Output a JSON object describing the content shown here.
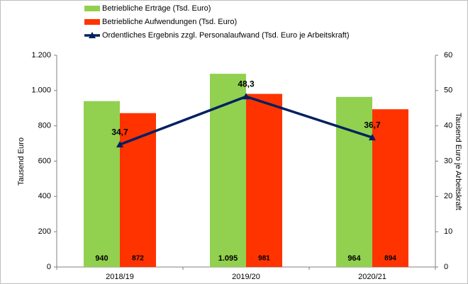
{
  "chart_data": {
    "type": "bar",
    "categories": [
      "2018/19",
      "2019/20",
      "2020/21"
    ],
    "series": [
      {
        "name": "Betriebliche Erträge (Tsd. Euro)",
        "color": "#92d050",
        "values": [
          940,
          1095,
          964
        ],
        "value_labels": [
          "940",
          "1.095",
          "964"
        ]
      },
      {
        "name": "Betriebliche Aufwendungen (Tsd. Euro)",
        "color": "#ff3300",
        "values": [
          872,
          981,
          894
        ],
        "value_labels": [
          "872",
          "981",
          "894"
        ]
      },
      {
        "name": "Ordentliches Ergebnis zzgl. Personalaufwand (Tsd. Euro je Arbeitskraft)",
        "color": "#002060",
        "type": "line",
        "axis": "y2",
        "values": [
          34.7,
          48.3,
          36.7
        ],
        "value_labels": [
          "34,7",
          "48,3",
          "36,7"
        ]
      }
    ],
    "ylabel": "Tausend Euro",
    "y2label": "Tausend Euro je Arbeitskraft",
    "ylim": [
      0,
      1200
    ],
    "yticks": [
      0,
      200,
      400,
      600,
      800,
      {
        "value": 1000,
        "label": "1.000"
      },
      {
        "value": 1200,
        "label": "1.200"
      }
    ],
    "y2lim": [
      0,
      60
    ],
    "y2ticks": [
      0,
      10,
      20,
      30,
      40,
      50,
      60
    ]
  }
}
